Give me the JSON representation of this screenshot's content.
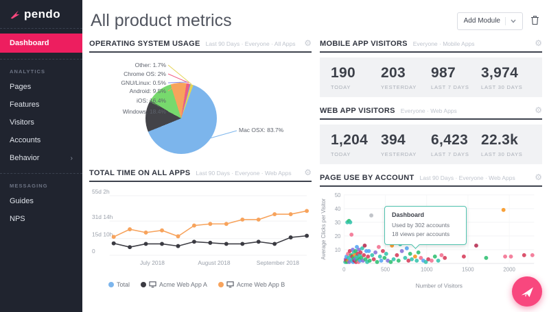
{
  "colors": {
    "accent_pink": "#ed1e5f",
    "fab_pink": "#f8477e",
    "sidebar_bg": "#20242f",
    "stat_box_bg": "#f1f2f4",
    "tooltip_border": "#4fc2ae"
  },
  "sidebar": {
    "logo_text": "pendo",
    "active_item": "Dashboard",
    "sections": [
      {
        "label": "ANALYTICS",
        "items": [
          {
            "label": "Pages"
          },
          {
            "label": "Features"
          },
          {
            "label": "Visitors"
          },
          {
            "label": "Accounts"
          },
          {
            "label": "Behavior",
            "chevron": true
          }
        ]
      },
      {
        "label": "MESSAGING",
        "items": [
          {
            "label": "Guides"
          },
          {
            "label": "NPS"
          }
        ]
      }
    ]
  },
  "header": {
    "title": "All product metrics",
    "add_module_label": "Add Module"
  },
  "cards": {
    "os_usage": {
      "title": "OPERATING SYSTEM USAGE",
      "subtitle": "Last 90 Days · Everyone · All Apps"
    },
    "mobile_visitors": {
      "title": "MOBILE APP VISITORS",
      "subtitle": "Everyone · Mobile Apps",
      "stats": [
        {
          "value": "190",
          "label": "TODAY"
        },
        {
          "value": "203",
          "label": "YESTERDAY"
        },
        {
          "value": "987",
          "label": "LAST 7 DAYS"
        },
        {
          "value": "3,974",
          "label": "LAST 30 DAYS"
        }
      ]
    },
    "web_visitors": {
      "title": "WEB APP VISITORS",
      "subtitle": "Everyone · Web Apps",
      "stats": [
        {
          "value": "1,204",
          "label": "TODAY"
        },
        {
          "value": "394",
          "label": "YESTERDAY"
        },
        {
          "value": "6,423",
          "label": "LAST 7 DAYS"
        },
        {
          "value": "22.3k",
          "label": "LAST 30 DAYS"
        }
      ]
    },
    "total_time": {
      "title": "TOTAL TIME ON ALL APPS",
      "subtitle": "Last 90 Days · Everyone · Web Apps"
    },
    "page_use": {
      "title": "PAGE USE BY ACCOUNT",
      "subtitle": "Last 90 Days · Everyone · Web Apps",
      "tooltip": {
        "title": "Dashboard",
        "line1": "Used by 302 accounts",
        "line2": "18 views per accounts"
      }
    }
  },
  "chart_data": [
    {
      "id": "os_usage",
      "type": "pie",
      "title": "OPERATING SYSTEM USAGE",
      "note": "percentages as displayed (multi-app overlap, sum > 100); slice angles normalized",
      "slices": [
        {
          "label": "Mac OSX",
          "pct": 83.7,
          "color": "#7cb5ec"
        },
        {
          "label": "Windows",
          "pct": 18.4,
          "color": "#434348"
        },
        {
          "label": "iOS",
          "pct": 16.4,
          "color": "#77d96d"
        },
        {
          "label": "Android",
          "pct": 9.5,
          "color": "#f7a35c"
        },
        {
          "label": "Chrome OS",
          "pct": 2,
          "color": "#f15c80"
        },
        {
          "label": "GNU/Linux",
          "pct": 0.5,
          "color": "#8085e9"
        },
        {
          "label": "Other",
          "pct": 1.7,
          "color": "#e4d354"
        }
      ]
    },
    {
      "id": "total_time",
      "type": "line",
      "title": "TOTAL TIME ON ALL APPS",
      "y_max_days": 59,
      "y_ticks": [
        {
          "label": "0",
          "days": 0
        },
        {
          "label": "15d 10h",
          "days": 15.4
        },
        {
          "label": "31d 14h",
          "days": 31.6
        },
        {
          "label": "55d 2h",
          "days": 55.1
        }
      ],
      "x_ticks": [
        {
          "label": "July 2018",
          "f": 0.2
        },
        {
          "label": "August 2018",
          "f": 0.52
        },
        {
          "label": "September 2018",
          "f": 0.85
        }
      ],
      "series": [
        {
          "name": "Total",
          "color": "#7cb5ec",
          "icon": "circle",
          "visible": false,
          "values_days": []
        },
        {
          "name": "Acme Web App A",
          "color": "#3b3b42",
          "icon": "monitor",
          "visible": true,
          "values_days": [
            11,
            7.5,
            10.5,
            10.5,
            8.5,
            12.5,
            11.5,
            10.5,
            10.5,
            12.5,
            10.5,
            16.5,
            18
          ]
        },
        {
          "name": "Acme Web App B",
          "color": "#f7a35c",
          "icon": "monitor",
          "visible": true,
          "values_days": [
            17,
            24,
            21,
            23,
            17.5,
            27.5,
            29,
            29,
            33,
            33,
            38,
            38,
            41
          ]
        }
      ]
    },
    {
      "id": "page_use",
      "type": "scatter",
      "title": "PAGE USE BY ACCOUNT",
      "xlabel": "Number of Visitors",
      "ylabel": "Average Clicks per Visitor",
      "xlim": [
        0,
        2300
      ],
      "ylim": [
        0,
        50
      ],
      "x_ticks": [
        0,
        500,
        1000,
        1500,
        2000
      ],
      "y_ticks": [
        10,
        20,
        30,
        40,
        50
      ],
      "palette": {
        "g": "#2fbf71",
        "t": "#35c4ad",
        "r": "#d63b59",
        "c": "#b52b50",
        "p": "#f2708f",
        "b": "#55a5f2",
        "v": "#8572d8",
        "o": "#f7941e",
        "y": "#b8bcc2"
      },
      "highlight_point": [
        840,
        16,
        "v"
      ],
      "tooltip": {
        "title": "Dashboard",
        "lines": [
          "Used by 302 accounts",
          "18 views per accounts"
        ]
      },
      "points": [
        [
          15,
          1,
          "t"
        ],
        [
          20,
          3,
          "v"
        ],
        [
          25,
          2,
          "r"
        ],
        [
          30,
          5,
          "b"
        ],
        [
          35,
          1,
          "g"
        ],
        [
          40,
          30,
          "t"
        ],
        [
          48,
          7,
          "p"
        ],
        [
          52,
          2,
          "o"
        ],
        [
          55,
          4,
          "t"
        ],
        [
          60,
          31,
          "g"
        ],
        [
          62,
          1,
          "v"
        ],
        [
          70,
          9,
          "r"
        ],
        [
          75,
          30,
          "t"
        ],
        [
          80,
          3,
          "b"
        ],
        [
          85,
          6,
          "g"
        ],
        [
          90,
          21,
          "p"
        ],
        [
          95,
          2,
          "t"
        ],
        [
          100,
          5,
          "r"
        ],
        [
          105,
          10,
          "v"
        ],
        [
          110,
          1,
          "b"
        ],
        [
          115,
          4,
          "g"
        ],
        [
          120,
          8,
          "t"
        ],
        [
          125,
          2,
          "c"
        ],
        [
          130,
          6,
          "o"
        ],
        [
          135,
          3,
          "v"
        ],
        [
          140,
          9,
          "g"
        ],
        [
          145,
          1,
          "r"
        ],
        [
          150,
          5,
          "t"
        ],
        [
          155,
          12,
          "b"
        ],
        [
          160,
          2,
          "g"
        ],
        [
          165,
          7,
          "r"
        ],
        [
          170,
          4,
          "t"
        ],
        [
          175,
          1,
          "p"
        ],
        [
          180,
          10,
          "v"
        ],
        [
          185,
          3,
          "g"
        ],
        [
          190,
          6,
          "t"
        ],
        [
          195,
          2,
          "b"
        ],
        [
          200,
          8,
          "r"
        ],
        [
          210,
          4,
          "g"
        ],
        [
          220,
          11,
          "t"
        ],
        [
          230,
          2,
          "v"
        ],
        [
          240,
          6,
          "r"
        ],
        [
          250,
          13,
          "c"
        ],
        [
          260,
          3,
          "g"
        ],
        [
          270,
          9,
          "b"
        ],
        [
          280,
          1,
          "t"
        ],
        [
          290,
          5,
          "r"
        ],
        [
          300,
          9,
          "b"
        ],
        [
          310,
          2,
          "g"
        ],
        [
          330,
          35,
          "y"
        ],
        [
          340,
          6,
          "t"
        ],
        [
          360,
          3,
          "r"
        ],
        [
          380,
          8,
          "v"
        ],
        [
          400,
          1,
          "g"
        ],
        [
          420,
          12,
          "p"
        ],
        [
          435,
          5,
          "t"
        ],
        [
          450,
          2,
          "b"
        ],
        [
          470,
          9,
          "r"
        ],
        [
          490,
          4,
          "g"
        ],
        [
          510,
          7,
          "t"
        ],
        [
          530,
          2,
          "v"
        ],
        [
          550,
          16,
          "r"
        ],
        [
          565,
          1,
          "g"
        ],
        [
          580,
          13,
          "o"
        ],
        [
          600,
          3,
          "t"
        ],
        [
          620,
          19,
          "p"
        ],
        [
          640,
          6,
          "r"
        ],
        [
          660,
          2,
          "g"
        ],
        [
          680,
          14,
          "t"
        ],
        [
          700,
          9,
          "v"
        ],
        [
          720,
          22,
          "g"
        ],
        [
          740,
          4,
          "t"
        ],
        [
          760,
          11,
          "b"
        ],
        [
          780,
          2,
          "r"
        ],
        [
          800,
          7,
          "g"
        ],
        [
          820,
          3,
          "t"
        ],
        [
          860,
          5,
          "o"
        ],
        [
          880,
          2,
          "t"
        ],
        [
          900,
          8,
          "g"
        ],
        [
          930,
          4,
          "p"
        ],
        [
          960,
          2,
          "b"
        ],
        [
          990,
          1,
          "t"
        ],
        [
          1020,
          3,
          "r"
        ],
        [
          1060,
          2,
          "p"
        ],
        [
          1100,
          5,
          "g"
        ],
        [
          1140,
          2,
          "t"
        ],
        [
          1180,
          6,
          "p"
        ],
        [
          1220,
          4,
          "r"
        ],
        [
          1450,
          5,
          "r"
        ],
        [
          1600,
          13,
          "c"
        ],
        [
          1720,
          4,
          "g"
        ],
        [
          1930,
          39,
          "o"
        ],
        [
          1950,
          5,
          "p"
        ],
        [
          2020,
          5,
          "p"
        ],
        [
          2180,
          6,
          "r"
        ],
        [
          2280,
          6,
          "p"
        ]
      ]
    }
  ]
}
